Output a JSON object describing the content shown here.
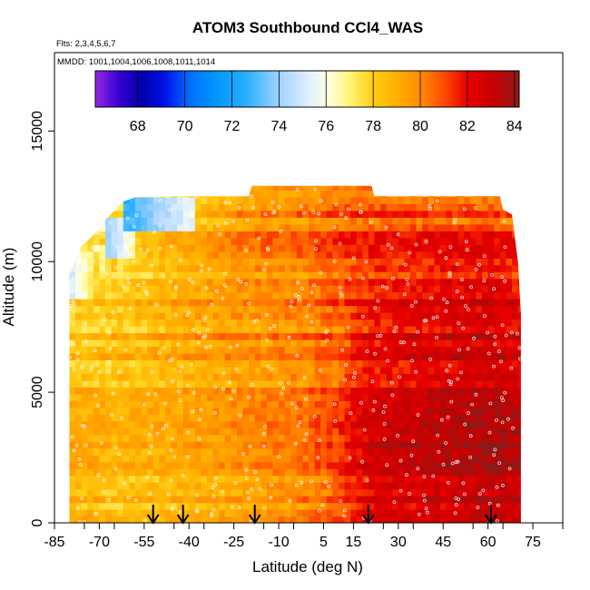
{
  "chart_data": {
    "type": "heatmap",
    "title": "ATOM3 Southbound CCl4_WAS",
    "annotations": {
      "flights": "Flts: 2,3,4,5,6,7",
      "dates": "MMDD: 1001,1004,1006,1008,1011,1014"
    },
    "xlabel": "Latitude (deg N)",
    "ylabel": "Altitude (m)",
    "xlim": [
      -85,
      85
    ],
    "ylim": [
      0,
      18000
    ],
    "x_ticks": [
      -85,
      -70,
      -55,
      -40,
      -25,
      -10,
      5,
      15,
      30,
      45,
      60,
      75
    ],
    "y_ticks": [
      0,
      5000,
      10000,
      15000
    ],
    "colorbar": {
      "range": [
        66.2,
        84.2
      ],
      "ticks": [
        68,
        70,
        72,
        74,
        76,
        78,
        80,
        82,
        84
      ],
      "placement": "top-inside"
    },
    "data_extent": {
      "lat_min": -80,
      "lat_max": 71,
      "alt_min": 0,
      "alt_max": 12900
    },
    "ceiling_profile": [
      {
        "lat": -80,
        "alt": 9500
      },
      {
        "lat": -76,
        "alt": 10600
      },
      {
        "lat": -72,
        "alt": 11000
      },
      {
        "lat": -68,
        "alt": 11600
      },
      {
        "lat": -62,
        "alt": 12300
      },
      {
        "lat": -57,
        "alt": 12500
      },
      {
        "lat": -20,
        "alt": 12500
      },
      {
        "lat": -19,
        "alt": 12900
      },
      {
        "lat": 21,
        "alt": 12900
      },
      {
        "lat": 22,
        "alt": 12500
      },
      {
        "lat": 64,
        "alt": 12500
      },
      {
        "lat": 65,
        "alt": 12000
      },
      {
        "lat": 68,
        "alt": 11800
      },
      {
        "lat": 70,
        "alt": 10000
      },
      {
        "lat": 71,
        "alt": 8000
      }
    ],
    "ceiling_blue_regions": [
      {
        "lat_min": -62,
        "lat_max": -38,
        "alt_min": 11200,
        "alt_max": 12500,
        "value": 72.5
      },
      {
        "lat_min": -68,
        "lat_max": -58,
        "alt_min": 10200,
        "alt_max": 11600,
        "value": 73.5
      },
      {
        "lat_min": -80,
        "lat_max": -70,
        "alt_min": 8600,
        "alt_max": 10300,
        "value": 74.8
      },
      {
        "lat_min": -72,
        "lat_max": -64,
        "alt_min": 9600,
        "alt_max": 10600,
        "value": 75.6
      }
    ],
    "grid_values": {
      "lat_nodes": [
        -80,
        -60,
        -40,
        -20,
        0,
        10,
        20,
        40,
        60,
        71
      ],
      "alt_nodes": [
        0,
        2500,
        5000,
        7500,
        10000,
        12900
      ],
      "values": [
        [
          79.0,
          78.4,
          78.8,
          79.4,
          80.2,
          80.8,
          82.4,
          82.7,
          83.0,
          82.8
        ],
        [
          78.8,
          78.5,
          78.9,
          79.5,
          80.1,
          80.9,
          82.3,
          82.9,
          83.4,
          83.1
        ],
        [
          78.6,
          78.6,
          79.0,
          79.6,
          80.2,
          80.8,
          82.1,
          82.5,
          83.0,
          82.7
        ],
        [
          78.2,
          78.4,
          79.2,
          79.6,
          80.0,
          80.6,
          81.8,
          82.3,
          82.6,
          82.2
        ],
        [
          77.0,
          77.8,
          78.8,
          79.8,
          80.2,
          80.8,
          81.3,
          81.6,
          82.0,
          81.4
        ],
        [
          75.4,
          76.6,
          78.2,
          79.6,
          80.2,
          80.8,
          80.8,
          80.6,
          80.4,
          79.8
        ]
      ]
    },
    "flight_markers_lat": [
      -52,
      -42,
      -18,
      20,
      61
    ]
  }
}
